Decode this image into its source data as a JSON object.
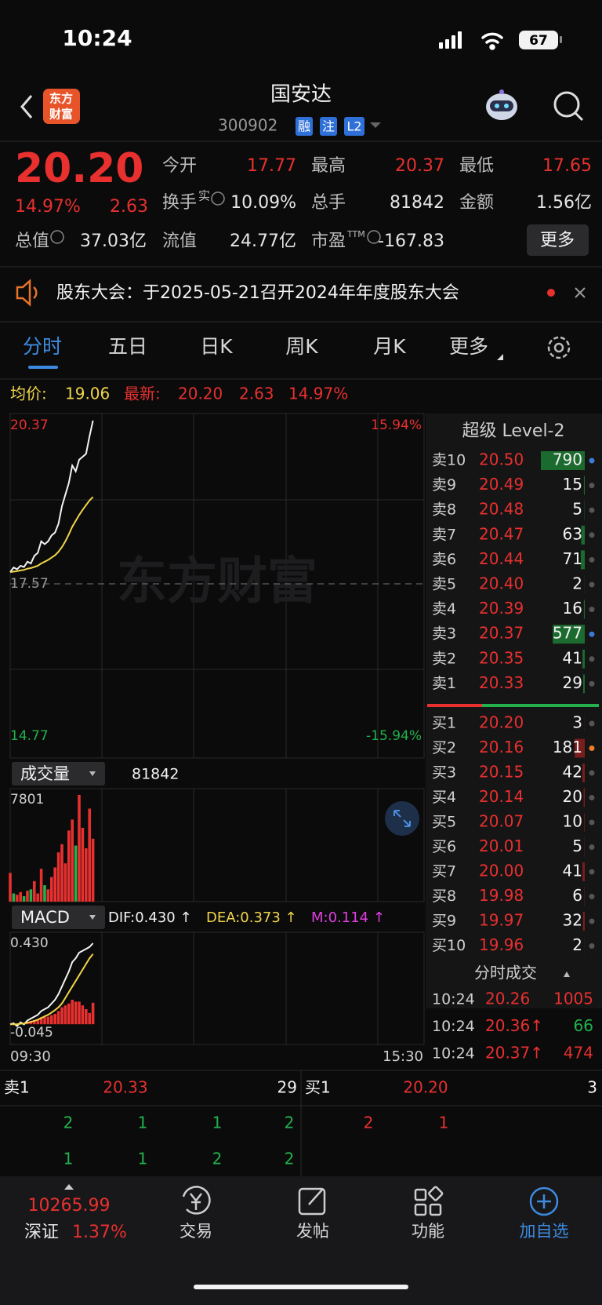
{
  "status_bar": {
    "time": "10:24",
    "battery": "67"
  },
  "header": {
    "title": "国安达",
    "code": "300902",
    "badges": [
      "融",
      "注",
      "L2"
    ],
    "logo": [
      "东方",
      "财富"
    ]
  },
  "quote": {
    "price": "20.20",
    "change_pct": "14.97%",
    "change": "2.63",
    "fields": [
      {
        "label": "今开",
        "value": "17.77",
        "color": "#e8302f"
      },
      {
        "label": "最高",
        "value": "20.37",
        "color": "#e8302f"
      },
      {
        "label": "最低",
        "value": "17.65",
        "color": "#e8302f"
      },
      {
        "label": "换手",
        "sup": "实",
        "value": "10.09%"
      },
      {
        "label": "总手",
        "value": "81842"
      },
      {
        "label": "金额",
        "value": "1.56亿"
      },
      {
        "label": "总值",
        "value": "37.03亿"
      },
      {
        "label": "流值",
        "value": "24.77亿"
      },
      {
        "label": "市盈",
        "sup": "TTM",
        "value": "-167.83"
      }
    ],
    "more": "更多"
  },
  "notice": "股东大会：于2025-05-21召开2024年年度股东大会",
  "tabs": [
    "分时",
    "五日",
    "日K",
    "周K",
    "月K",
    "更多"
  ],
  "intraday": {
    "avg_label": "均价:",
    "avg": "19.06",
    "latest_label": "最新:",
    "latest": "20.20",
    "latest_change": "2.63",
    "latest_pct": "14.97%",
    "watermark": "东方财富",
    "ylim": [
      14.77,
      20.37
    ],
    "yticks": [
      14.77,
      17.57,
      20.37
    ],
    "pct_labels": [
      "-15.94%",
      "15.94%"
    ],
    "xlim": [
      0,
      240
    ],
    "time_labels": [
      "09:30",
      "15:30"
    ],
    "x": [
      0,
      2,
      4,
      6,
      8,
      10,
      12,
      14,
      16,
      18,
      20,
      22,
      24,
      26,
      28,
      30,
      32,
      34,
      36,
      38,
      40,
      42,
      44,
      46,
      48
    ],
    "price": [
      17.77,
      17.85,
      17.82,
      17.88,
      17.86,
      17.95,
      17.92,
      18.05,
      18.1,
      18.3,
      18.25,
      18.3,
      18.4,
      18.45,
      18.6,
      18.9,
      19.1,
      19.3,
      19.6,
      19.5,
      19.7,
      19.75,
      19.8,
      20.1,
      20.37
    ],
    "price_color": "#f2f2f2",
    "avg_price": [
      17.77,
      17.78,
      17.79,
      17.8,
      17.81,
      17.83,
      17.84,
      17.86,
      17.88,
      17.92,
      17.95,
      17.98,
      18.02,
      18.06,
      18.12,
      18.2,
      18.3,
      18.42,
      18.55,
      18.65,
      18.75,
      18.84,
      18.92,
      19.0,
      19.06
    ],
    "avg_color": "#f1d54a"
  },
  "volume": {
    "label": "成交量",
    "total": "81842",
    "ylim": [
      0,
      7801
    ],
    "yticks": [
      7801
    ],
    "values": [
      2100,
      600,
      500,
      700,
      400,
      800,
      900,
      1500,
      600,
      2400,
      1200,
      900,
      1800,
      2500,
      3600,
      4200,
      2800,
      5200,
      6000,
      4100,
      7801,
      5400,
      3900,
      6800,
      4600
    ],
    "colors": [
      "#e8302f",
      "#22b14c",
      "#e8302f",
      "#e8302f",
      "#22b14c",
      "#e8302f",
      "#22b14c",
      "#e8302f",
      "#e8302f",
      "#e8302f",
      "#22b14c",
      "#e8302f",
      "#e8302f",
      "#e8302f",
      "#e8302f",
      "#e8302f",
      "#e8302f",
      "#e8302f",
      "#e8302f",
      "#22b14c",
      "#e8302f",
      "#e8302f",
      "#e8302f",
      "#e8302f",
      "#e8302f"
    ]
  },
  "macd": {
    "label": "MACD",
    "dif": "DIF:0.430 ↑",
    "dea": "DEA:0.373 ↑",
    "m": "M:0.114 ↑",
    "ylim": [
      -0.045,
      0.43
    ],
    "yticks": [
      -0.045,
      {
        "value": 0.43,
        "label": "0.430"
      }
    ],
    "dif_values": [
      0,
      0.005,
      -0.01,
      0.01,
      0.0,
      0.02,
      0.03,
      0.04,
      0.05,
      0.07,
      0.08,
      0.09,
      0.11,
      0.13,
      0.16,
      0.2,
      0.24,
      0.28,
      0.33,
      0.35,
      0.38,
      0.39,
      0.4,
      0.41,
      0.43
    ],
    "dea_values": [
      0,
      0.0,
      0.0,
      0.003,
      0.004,
      0.008,
      0.012,
      0.018,
      0.024,
      0.033,
      0.042,
      0.05,
      0.062,
      0.075,
      0.09,
      0.11,
      0.14,
      0.17,
      0.2,
      0.23,
      0.26,
      0.29,
      0.32,
      0.35,
      0.373
    ],
    "m_values": [
      0,
      0.005,
      -0.01,
      0.007,
      -0.004,
      0.012,
      0.018,
      0.022,
      0.026,
      0.037,
      0.038,
      0.04,
      0.048,
      0.055,
      0.07,
      0.09,
      0.1,
      0.11,
      0.13,
      0.12,
      0.12,
      0.1,
      0.08,
      0.06,
      0.114
    ],
    "dif_color": "#f2f2f2",
    "dea_color": "#f1d54a",
    "m_color": "#e8302f"
  },
  "orderbook": {
    "title": "超级 Level-2",
    "asks": [
      {
        "label": "卖10",
        "price": "20.50",
        "volume": 790,
        "dot": "#3a7bd5"
      },
      {
        "label": "卖9",
        "price": "20.49",
        "volume": 15,
        "dot": "#555555"
      },
      {
        "label": "卖8",
        "price": "20.48",
        "volume": 5,
        "dot": "#555555"
      },
      {
        "label": "卖7",
        "price": "20.47",
        "volume": 63,
        "dot": "#555555"
      },
      {
        "label": "卖6",
        "price": "20.44",
        "volume": 71,
        "dot": "#555555"
      },
      {
        "label": "卖5",
        "price": "20.40",
        "volume": 2,
        "dot": "#555555"
      },
      {
        "label": "卖4",
        "price": "20.39",
        "volume": 16,
        "dot": "#555555"
      },
      {
        "label": "卖3",
        "price": "20.37",
        "volume": 577,
        "dot": "#3a7bd5"
      },
      {
        "label": "卖2",
        "price": "20.35",
        "volume": 41,
        "dot": "#555555"
      },
      {
        "label": "卖1",
        "price": "20.33",
        "volume": 29,
        "dot": "#555555"
      }
    ],
    "bids": [
      {
        "label": "买1",
        "price": "20.20",
        "volume": 3,
        "dot": "#555555"
      },
      {
        "label": "买2",
        "price": "20.16",
        "volume": 181,
        "dot": "#f07a2a"
      },
      {
        "label": "买3",
        "price": "20.15",
        "volume": 42,
        "dot": "#555555"
      },
      {
        "label": "买4",
        "price": "20.14",
        "volume": 20,
        "dot": "#555555"
      },
      {
        "label": "买5",
        "price": "20.07",
        "volume": 10,
        "dot": "#555555"
      },
      {
        "label": "买6",
        "price": "20.01",
        "volume": 5,
        "dot": "#555555"
      },
      {
        "label": "买7",
        "price": "20.00",
        "volume": 41,
        "dot": "#555555"
      },
      {
        "label": "买8",
        "price": "19.98",
        "volume": 6,
        "dot": "#555555"
      },
      {
        "label": "买9",
        "price": "19.97",
        "volume": 32,
        "dot": "#555555"
      },
      {
        "label": "买10",
        "price": "19.96",
        "volume": 2,
        "dot": "#555555"
      }
    ]
  },
  "trades": {
    "title": "分时成交",
    "rows": [
      {
        "time": "10:24",
        "price": "20.26",
        "volume": "1005",
        "color": "#e8302f"
      },
      {
        "time": "10:24",
        "price": "20.36↑",
        "volume": "66",
        "color": "#22b14c"
      },
      {
        "time": "10:24",
        "price": "20.37↑",
        "volume": "474",
        "color": "#e8302f"
      }
    ]
  },
  "bottom_orders": {
    "sell": {
      "label": "卖1",
      "price": "20.33",
      "volume": "29",
      "queue": [
        [
          "2",
          "1",
          "1",
          "2"
        ],
        [
          "1",
          "1",
          "2",
          "2"
        ]
      ]
    },
    "buy": {
      "label": "买1",
      "price": "20.20",
      "volume": "3",
      "queue": [
        [
          "2",
          "1"
        ]
      ]
    }
  },
  "nav": {
    "index_value": "10265.99",
    "index_name": "深证",
    "index_pct": "1.37%",
    "items": [
      "交易",
      "发帖",
      "功能",
      "加自选"
    ]
  }
}
